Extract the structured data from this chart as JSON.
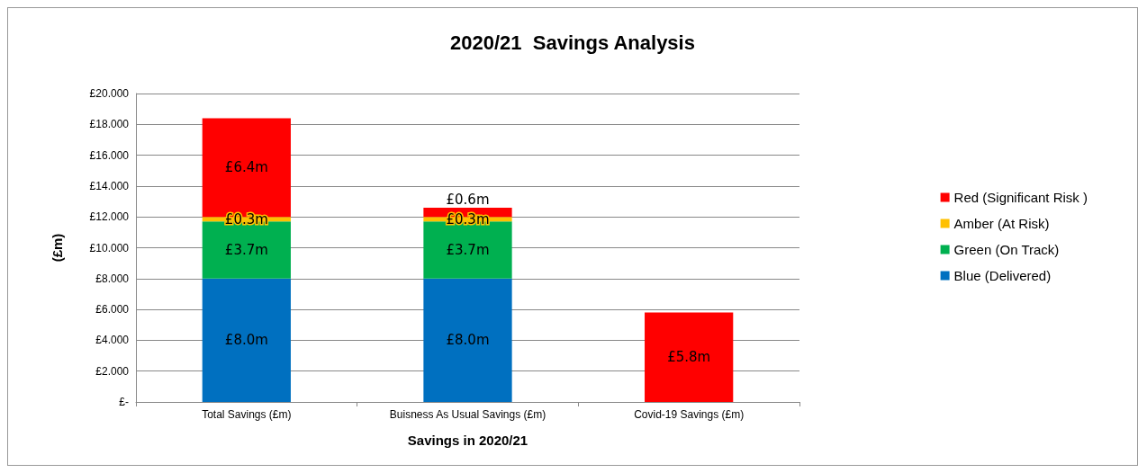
{
  "chart_data": {
    "type": "bar",
    "title": "2020/21  Savings Analysis",
    "xlabel": "Savings in 2020/21",
    "ylabel": "(£m)",
    "stacked": true,
    "categories": [
      "Total Savings (£m)",
      "Buisness As Usual Savings (£m)",
      "Covid-19 Savings (£m)"
    ],
    "series": [
      {
        "name": "Blue (Delivered)",
        "color": "#0070c0",
        "values": [
          8.0,
          8.0,
          null
        ],
        "value_labels": [
          "£8.0m",
          "£8.0m",
          null
        ]
      },
      {
        "name": "Green (On Track)",
        "color": "#00b050",
        "values": [
          3.7,
          3.7,
          null
        ],
        "value_labels": [
          "£3.7m",
          "£3.7m",
          null
        ]
      },
      {
        "name": "Amber (At Risk)",
        "color": "#ffc000",
        "values": [
          0.3,
          0.3,
          null
        ],
        "value_labels": [
          "£0.3m",
          "£0.3m",
          null
        ]
      },
      {
        "name": "Red (Significant Risk )",
        "color": "#ff0000",
        "values": [
          6.4,
          0.6,
          5.8
        ],
        "value_labels": [
          "£6.4m",
          "£0.6m",
          "£5.8m"
        ]
      }
    ],
    "ylim": [
      0,
      20
    ],
    "yticks": [
      {
        "value": 0,
        "label": "£-"
      },
      {
        "value": 2,
        "label": "£2.000"
      },
      {
        "value": 4,
        "label": "£4.000"
      },
      {
        "value": 6,
        "label": "£6.000"
      },
      {
        "value": 8,
        "label": "£8.000"
      },
      {
        "value": 10,
        "label": "£10.000"
      },
      {
        "value": 12,
        "label": "£12.000"
      },
      {
        "value": 14,
        "label": "£14.000"
      },
      {
        "value": 16,
        "label": "£16.000"
      },
      {
        "value": 18,
        "label": "£18.000"
      },
      {
        "value": 20,
        "label": "£20.000"
      }
    ],
    "grid": "y",
    "legend": "right"
  }
}
